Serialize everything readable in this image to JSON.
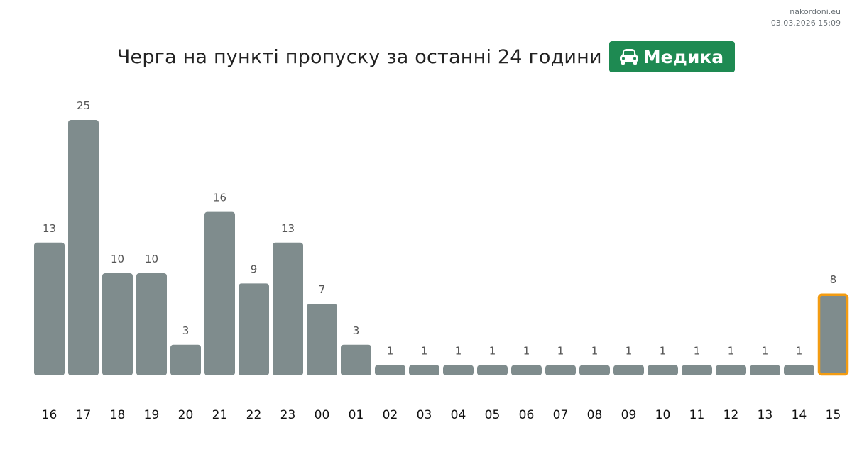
{
  "watermark": {
    "site": "nakordoni.eu",
    "timestamp": "03.03.2026 15:09"
  },
  "header": {
    "title": "Черга на пункті пропуску за останні 24 години",
    "badge_label": "Медика",
    "badge_icon": "car-icon",
    "badge_color": "#1e8a52"
  },
  "colors": {
    "bar": "#7f8c8d",
    "highlight_border": "#f39c12"
  },
  "chart_data": {
    "type": "bar",
    "categories": [
      "16",
      "17",
      "18",
      "19",
      "20",
      "21",
      "22",
      "23",
      "00",
      "01",
      "02",
      "03",
      "04",
      "05",
      "06",
      "07",
      "08",
      "09",
      "10",
      "11",
      "12",
      "13",
      "14",
      "15"
    ],
    "values": [
      13,
      25,
      10,
      10,
      3,
      16,
      9,
      13,
      7,
      3,
      1,
      1,
      1,
      1,
      1,
      1,
      1,
      1,
      1,
      1,
      1,
      1,
      1,
      8
    ],
    "highlighted_category": "15",
    "title": "Черга на пункті пропуску за останні 24 години",
    "xlabel": "",
    "ylabel": "",
    "ylim": [
      0,
      25
    ],
    "grid": false,
    "data_labels": true
  }
}
